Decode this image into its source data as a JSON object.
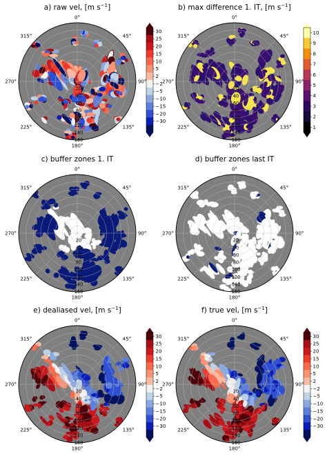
{
  "panels": [
    {
      "letter": "a",
      "title_main": "a) raw vel, [m s",
      "title_sup": "−1",
      "title_end": "]",
      "fill": "vel_raw",
      "has_colorbar": true
    },
    {
      "letter": "b",
      "title_main": "b) max difference 1. IT, [m s",
      "title_sup": "−1",
      "title_end": "]",
      "fill": "diff",
      "has_colorbar": true
    },
    {
      "letter": "c",
      "title_main": "c) buffer zones 1. IT",
      "title_sup": "",
      "title_end": "",
      "fill": "buffer1",
      "has_colorbar": false
    },
    {
      "letter": "d",
      "title_main": "d) buffer zones last IT",
      "title_sup": "",
      "title_end": "",
      "fill": "bufferlast",
      "has_colorbar": false
    },
    {
      "letter": "e",
      "title_main": "e) dealiased vel, [m s",
      "title_sup": "−1",
      "title_end": "]",
      "fill": "vel_dealiased",
      "has_colorbar": true
    },
    {
      "letter": "f",
      "title_main": "f) true vel, [m s",
      "title_sup": "−1",
      "title_end": "]",
      "fill": "vel_true",
      "has_colorbar": true
    }
  ],
  "azimuth_labels": [
    "0°",
    "45°",
    "90°",
    "135°",
    "180°",
    "225°",
    "270°",
    "315°"
  ],
  "range_labels": [
    "20",
    "40",
    "60",
    "80",
    "100",
    "120",
    "140",
    "160"
  ],
  "colorbars": {
    "velocity": {
      "ticks": [
        "30",
        "25",
        "20",
        "15",
        "10",
        "5",
        "2",
        "−2",
        "−5",
        "−10",
        "−15",
        "−20",
        "−30"
      ],
      "colors": [
        "#4d0008",
        "#a50f15",
        "#cb181d",
        "#ef3b2c",
        "#fb6a4a",
        "#fc9272",
        "#fcbba1",
        "#f2f2f2",
        "#bfd3e6",
        "#8ba9e0",
        "#5c7fd9",
        "#2f50d0",
        "#0a1fb8",
        "#02125e"
      ]
    },
    "difference": {
      "ticks": [
        "10",
        "9",
        "8",
        "7",
        "6",
        "5",
        "4",
        "3",
        "2",
        "1"
      ],
      "colors": [
        "#fcffa4",
        "#f8c932",
        "#f98e09",
        "#e45a31",
        "#bc3754",
        "#8a226a",
        "#57106e",
        "#2c0b5a",
        "#160b39",
        "#000004"
      ]
    }
  },
  "colors": {
    "background_gray": "#808080",
    "ring_line": "#bdbdbd",
    "buffer_navy": "#0a1a78",
    "echo_white": "#ffffff",
    "diff_purple": "#2d0f6e",
    "diff_yellow": "#f7e64a"
  }
}
